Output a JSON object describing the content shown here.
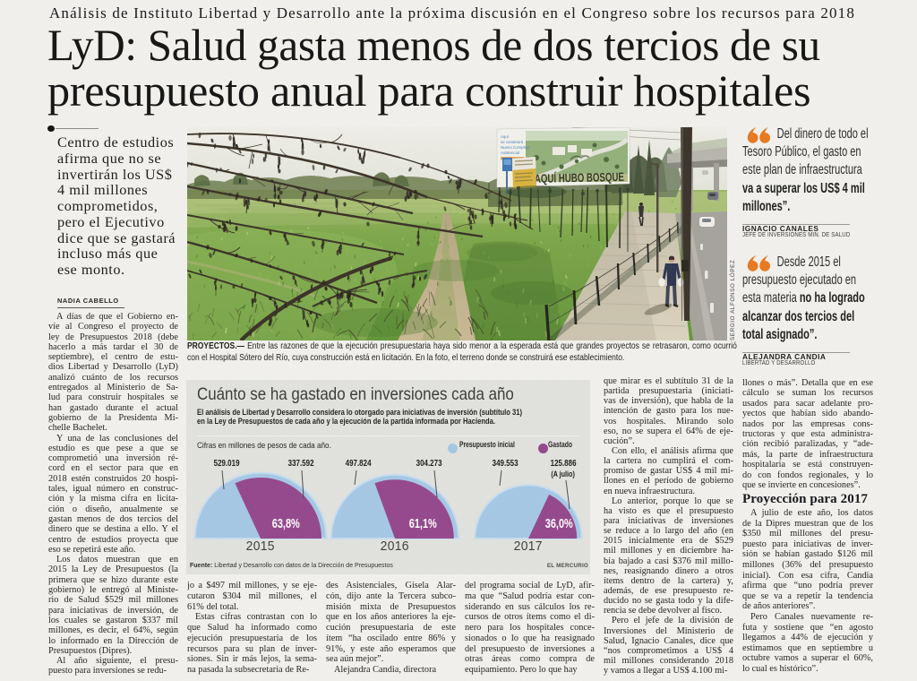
{
  "colors": {
    "accent_orange": "#e8791f",
    "chart_blue": "#a5c8e5",
    "chart_purple": "#95478d",
    "page_bg": "#f2f1ed",
    "chartbox_bg": "#e2e2de"
  },
  "kicker": "Análisis de Instituto Libertad y Desarrollo ante la próxima discusión en el Congreso sobre los recursos para 2018",
  "headline": {
    "line1": "LyD: Salud gasta menos de dos tercios de su",
    "line2": "presupuesto anual para construir hospitales"
  },
  "lede": {
    "lines": [
      "Centro de estudios",
      "afirma que no se",
      "invertirán los US$",
      "4 mil millones",
      "comprometidos,",
      "pero el Ejecutivo",
      "dice que se gastará",
      "incluso más que",
      "ese monto."
    ]
  },
  "byline": "NADIA CABELLO",
  "photo": {
    "caption_label": "PROYECTOS.—",
    "caption": " Entre las razones de que la ejecución presupuestaria haya sido menor a la esperada está que grandes proyectos se retrasaron, como ocurrió con el Hospital Sótero del Río, cuya construcción está en licitación. En la foto, el terreno donde se construirá ese establecimiento.",
    "credit": "SERGIO ALFONSO LÓPEZ",
    "billboard_graffiti": "AQUÍ HUBO BOSQUE",
    "billboard_lines": [
      "Aquí",
      "se construirá",
      "Nuevo Complejo",
      "Asistencial"
    ]
  },
  "chart": {
    "title": "Cuánto se ha gastado en inversiones cada año",
    "subtitle_line1": "El análisis de Libertad y Desarrollo considera lo otorgado para iniciativas de inversión (subtítulo 31)",
    "subtitle_line2": "en la Ley de Presupuestos de cada año y la ejecución de la partida informada por Hacienda.",
    "note": "Cifras en millones de pesos de cada año.",
    "legend": [
      "Presupuesto inicial",
      "Gastado"
    ],
    "source_label": "Fuente:",
    "source": " Libertad y Desarrollo con datos de la Dirección de Presupuestos",
    "brand": "EL MERCURIO"
  },
  "chart_data": {
    "type": "pie",
    "variant": "semicircle",
    "title": "Cuánto se ha gastado en inversiones cada año",
    "unit": "millones de pesos de cada año",
    "legend": [
      "Presupuesto inicial",
      "Gastado"
    ],
    "years": [
      {
        "year": "2015",
        "presupuesto_inicial": "529.019",
        "presupuesto_inicial_value": 529019,
        "gastado": "337.592",
        "gastado_value": 337592,
        "pct": "63,8%",
        "pct_value": 63.8,
        "gastado_note": ""
      },
      {
        "year": "2016",
        "presupuesto_inicial": "497.824",
        "presupuesto_inicial_value": 497824,
        "gastado": "304.273",
        "gastado_value": 304273,
        "pct": "61,1%",
        "pct_value": 61.1,
        "gastado_note": ""
      },
      {
        "year": "2017",
        "presupuesto_inicial": "349.553",
        "presupuesto_inicial_value": 349553,
        "gastado": "125.886",
        "gastado_value": 125886,
        "pct": "36,0%",
        "pct_value": 36.0,
        "gastado_note": "(A julio)"
      }
    ]
  },
  "quotes": [
    {
      "normal": "Del dinero de todo el Tesoro Público, el gasto en este plan de infraestructura ",
      "bold": "va a superar los US$ 4 mil millones”.",
      "name": "IGNACIO CANALES",
      "role": "JEFE DE INVERSIONES MIN. DE SALUD"
    },
    {
      "normal": "Desde 2015 el presupuesto ejecutado en esta materia ",
      "bold": "no ha logrado alcanzar dos tercios del total asignado”.",
      "name": "ALEJANDRA CANDIA",
      "role": "LIBERTAD Y DESARROLLO"
    }
  ],
  "subhead": "Proyección para 2017",
  "columns": {
    "left": [
      [
        "A días de que el Gobierno en-",
        "víe al Congreso el proyecto de",
        "ley de Presupuestos 2018 (debe",
        "hacerlo a más tardar el 30 de",
        "septiembre), el centro de estu-",
        "dios Libertad y Desarrollo (LyD)",
        "analizó cuánto de los recursos",
        "entregados al Ministerio de Sa-",
        "lud para construir hospitales se",
        "han gastado durante el actual",
        "gobierno de la Presidenta Mi-",
        "chelle Bachelet."
      ],
      [
        "Y una de las conclusiones del",
        "estudio es que pese a que se",
        "comprometió una inversión ré-",
        "cord en el sector para que en",
        "2018 estén construidos 20 hospi-",
        "tales, igual número en construc-",
        "ción y la misma cifra en licita-",
        "ción o diseño, anualmente se",
        "gastan menos de dos tercios del",
        "dinero que se destina a ello. Y el",
        "centro de estudios proyecta que",
        "eso se repetirá este año."
      ],
      [
        "Los datos muestran que en",
        "2015 la Ley de Presupuestos (la",
        "primera que se hizo durante este",
        "gobierno) le entregó al Ministe-",
        "rio de Salud $529 mil millones",
        "para iniciativas de inversión, de",
        "los cuales se gastaron $337 mil",
        "millones, es decir, el 64%, según",
        "lo informado en la Dirección de",
        "Presupuestos (Dipres)."
      ],
      [
        "Al año siguiente, el presu-",
        "puesto para inversiones se redu-"
      ]
    ],
    "c1": [
      [
        "jo a $497 mil millones, y se eje-",
        "cutaron $304 mil millones, el",
        "61% del total."
      ],
      [
        "Estas cifras contrastan con lo",
        "que Salud ha informado como",
        "ejecución presupuestaria de los",
        "recursos para su plan de inver-",
        "siones. Sin ir más lejos, la sema-",
        "na pasada la subsecretaria de Re-"
      ]
    ],
    "c2": [
      [
        "des Asistenciales, Gisela Alar-",
        "cón, dijo ante la Tercera subco-",
        "misión mixta de Presupuestos",
        "que en los años anteriores la eje-",
        "cución presupuestaria de este",
        "ítem “ha oscilado entre 86% y",
        "91%, y este año esperamos que",
        "sea aún mejor”."
      ],
      [
        "Alejandra Candia, directora"
      ]
    ],
    "c3": [
      [
        "del programa social de LyD, afir-",
        "ma que “Salud podría estar con-",
        "siderando en sus cálculos los re-",
        "cursos de otros ítems como el di-",
        "nero para los hospitales conce-",
        "sionados o lo que ha reasignado",
        "del presupuesto de inversiones a",
        "otras áreas como compra de",
        "equipamiento. Pero lo que hay"
      ]
    ],
    "c4": [
      [
        "que mirar es el subtítulo 31 de la",
        "partida presupuestaria (iniciati-",
        "vas de inversión), que habla de la",
        "intención de gasto para los nue-",
        "vos hospitales. Mirando solo",
        "eso, no se supera el 64% de eje-",
        "cución”."
      ],
      [
        "Con ello, el análisis afirma que",
        "la cartera no cumplirá el com-",
        "promiso de gastar US$ 4 mil mi-",
        "llones en el período de gobierno",
        "en nueva infraestructura."
      ],
      [
        "Lo anterior, porque lo que se",
        "ha visto es que el presupuesto",
        "para iniciativas de inversiones",
        "se reduce a lo largo del año (en",
        "2015 inicialmente era de $529",
        "mil millones y en diciembre ha-",
        "bía bajado a casi $376 mil millo-",
        "nes, reasignando dinero a otros",
        "ítems dentro de la cartera) y,",
        "además, de ese presupuesto re-",
        "ducido no se gasta todo y la dife-",
        "rencia se debe devolver al fisco."
      ],
      [
        "Pero el jefe de la división de",
        "Inversiones del Ministerio de",
        "Salud, Ignacio Canales, dice que",
        "“nos comprometimos a US$ 4",
        "mil millones considerando 2018",
        "y vamos a llegar a US$ 4.100 mi-"
      ]
    ],
    "c5a": [
      [
        "llones o más”. Detalla que en ese",
        "cálculo se suman los recursos",
        "usados para sacar adelante pro-",
        "yectos que habían sido abando-",
        "nados por las empresas cons-",
        "tructoras y que esta administra-",
        "ción recibió paralizadas, y “ade-",
        "más, la parte de infraestructura",
        "hospitalaria se está construyen-",
        "do con fondos regionales, y lo",
        "que se invierte en concesiones”."
      ]
    ],
    "c5b": [
      [
        "A julio de este año, los datos",
        "de la Dipres muestran que de los",
        "$350 mil millones del presu-",
        "puesto para iniciativas de inver-",
        "sión se habían gastado $126 mil",
        "millones (36% del presupuesto",
        "inicial). Con esa cifra, Candia",
        "afirma que “uno podría prever",
        "que se va a repetir la tendencia",
        "de años anteriores”."
      ],
      [
        "Pero Canales nuevamente re-",
        "futa y sostiene que “en agosto",
        "llegamos a 44% de ejecución y",
        "estimamos que en septiembre u",
        "octubre vamos a superar el 60%,",
        "lo cual es histórico”."
      ]
    ]
  }
}
